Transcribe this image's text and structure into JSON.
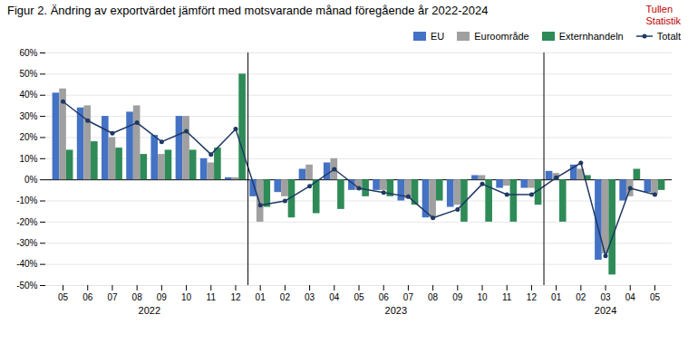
{
  "chart_data": {
    "type": "bar",
    "title": "Figur 2. Ändring av exportvärdet jämfört med motsvarande månad föregående år 2022-2024",
    "categories": [
      "05",
      "06",
      "07",
      "08",
      "09",
      "10",
      "11",
      "12",
      "01",
      "02",
      "03",
      "04",
      "05",
      "06",
      "07",
      "08",
      "09",
      "10",
      "11",
      "12",
      "01",
      "02",
      "03",
      "04",
      "05"
    ],
    "category_groups": [
      "2022",
      "2022",
      "2022",
      "2022",
      "2022",
      "2022",
      "2022",
      "2022",
      "2023",
      "2023",
      "2023",
      "2023",
      "2023",
      "2023",
      "2023",
      "2023",
      "2023",
      "2023",
      "2023",
      "2023",
      "2024",
      "2024",
      "2024",
      "2024",
      "2024"
    ],
    "series": [
      {
        "name": "EU",
        "color": "#4472c4",
        "values": [
          41,
          34,
          30,
          32,
          21,
          30,
          10,
          1,
          -8,
          -6,
          5,
          8,
          -5,
          -5,
          -10,
          -18,
          -13,
          2,
          -4,
          -4,
          4,
          7,
          -38,
          -10,
          -6
        ]
      },
      {
        "name": "Euroområde",
        "color": "#a0a0a0",
        "values": [
          43,
          35,
          20,
          35,
          12,
          30,
          8,
          1,
          -20,
          -8,
          7,
          10,
          -5,
          -5,
          -9,
          -18,
          -12,
          2,
          -3,
          -4,
          3,
          5,
          -35,
          -8,
          -7
        ]
      },
      {
        "name": "Externhandeln",
        "color": "#2e8b57",
        "values": [
          14,
          18,
          15,
          12,
          14,
          14,
          15,
          50,
          -13,
          -18,
          -16,
          -14,
          -8,
          -8,
          -12,
          -10,
          -20,
          -20,
          -20,
          -12,
          -20,
          2,
          -45,
          5,
          -5
        ]
      },
      {
        "name": "Totalt",
        "type": "line",
        "marker": "circle",
        "color": "#1f3864",
        "values": [
          37,
          28,
          22,
          27,
          18,
          23,
          12,
          24,
          -12,
          -10,
          -3,
          5,
          -4,
          -6,
          -8,
          -18,
          -14,
          -2,
          -7,
          -7,
          1,
          8,
          -36,
          -4,
          -7
        ]
      }
    ],
    "ylim": [
      -50,
      60
    ],
    "yticks": [
      {
        "value": -50,
        "label": "-50%"
      },
      {
        "value": -40,
        "label": "-40%"
      },
      {
        "value": -30,
        "label": "-30%"
      },
      {
        "value": -20,
        "label": "-20%"
      },
      {
        "value": -10,
        "label": "-10%"
      },
      {
        "value": 0,
        "label": "0%"
      },
      {
        "value": 10,
        "label": "10%"
      },
      {
        "value": 20,
        "label": "20%"
      },
      {
        "value": 30,
        "label": "30%"
      },
      {
        "value": 40,
        "label": "40%"
      },
      {
        "value": 50,
        "label": "50%"
      },
      {
        "value": 60,
        "label": "60%"
      }
    ],
    "grid": true,
    "legend": "upper right",
    "annotations": [
      {
        "text": "Tullen\nStatistik",
        "color": "#c00000"
      }
    ]
  }
}
